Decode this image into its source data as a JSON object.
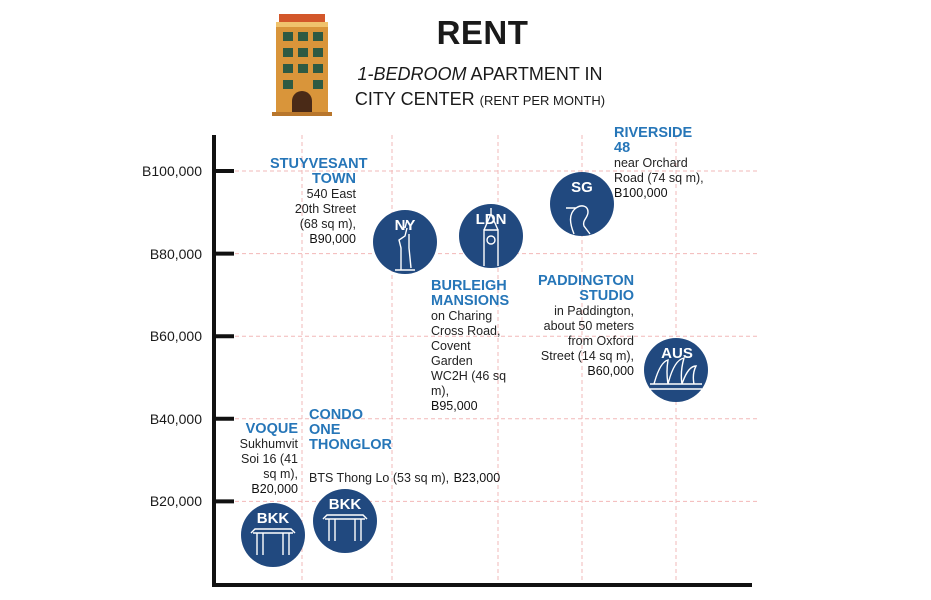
{
  "header": {
    "title": "RENT",
    "subtitle_italic": "1-BEDROOM",
    "subtitle_rest": "APARTMENT IN",
    "subtitle_line2": "CITY CENTER",
    "subtitle_small": "(RENT PER MONTH)"
  },
  "colors": {
    "circle": "#21497f",
    "name": "#2676b8",
    "grid": "#f2b8b8",
    "axis": "#111111"
  },
  "chart_data": {
    "type": "scatter",
    "title": "RENT",
    "subtitle": "1-BEDROOM APARTMENT IN CITY CENTER (RENT PER MONTH)",
    "ylim": [
      0,
      110000
    ],
    "yticks": [
      20000,
      40000,
      60000,
      80000,
      100000
    ],
    "ytick_labels": [
      "B20,000",
      "B40,000",
      "B60,000",
      "B80,000",
      "B100,000"
    ],
    "grid": true,
    "points": [
      {
        "city": "BKK",
        "icon": "gate-icon",
        "name": "VOQUE",
        "description": "Sukhumvit Soi 16 (41 sq m),",
        "price_text": "B20,000",
        "value": 20000
      },
      {
        "city": "BKK",
        "icon": "gate-icon",
        "name": "CONDO ONE THONGLOR",
        "description": "BTS Thong Lo (53 sq m),",
        "price_text": "B23,000",
        "value": 23000
      },
      {
        "city": "NY",
        "icon": "statue-of-liberty-icon",
        "name": "STUYVESANT TOWN",
        "description": "540 East 20th Street (68 sq m),",
        "price_text": "B90,000",
        "value": 90000
      },
      {
        "city": "LDN",
        "icon": "big-ben-icon",
        "name": "BURLEIGH MANSIONS",
        "description": "on Charing Cross Road, Covent Garden WC2H (46 sq m),",
        "price_text": "B95,000",
        "value": 95000
      },
      {
        "city": "SG",
        "icon": "merlion-icon",
        "name": "RIVERSIDE 48",
        "description": "near Orchard Road (74 sq m),",
        "price_text": "B100,000",
        "value": 100000
      },
      {
        "city": "AUS",
        "icon": "opera-house-icon",
        "name": "PADDINGTON STUDIO",
        "description": "in Paddington, about 50 meters from Oxford Street (14 sq m),",
        "price_text": "B60,000",
        "value": 60000
      }
    ]
  }
}
